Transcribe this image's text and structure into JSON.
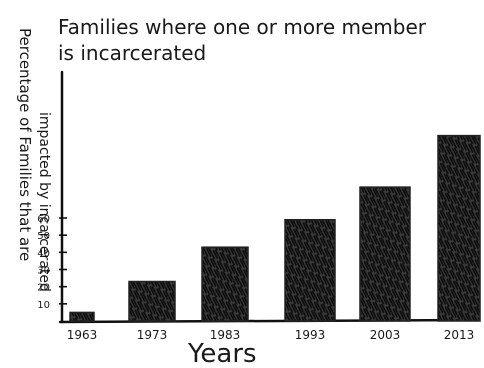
{
  "chart_data": {
    "type": "bar",
    "title": "Families where one or more member is incarcerated",
    "title_lines": [
      "Families where one or more member",
      "is incarcerated"
    ],
    "xlabel": "Years",
    "ylabel": "Percentage of families that are impacted by incarcerated",
    "ylabel_lines": [
      "Percentage of Families that are",
      "impacted by incarcerated"
    ],
    "categories": [
      "1963",
      "1973",
      "1983",
      "1993",
      "2003",
      "2013"
    ],
    "values": [
      0.5,
      2.3,
      4.3,
      5.9,
      7.8,
      10.8
    ],
    "y_ticks": [
      1,
      2,
      3,
      4,
      5,
      6
    ],
    "y_tick_labels": [
      "10",
      "20",
      "30",
      "40",
      "50",
      "60"
    ],
    "ylim": [
      0,
      12
    ],
    "grid": false,
    "bar_color": "#222222"
  }
}
